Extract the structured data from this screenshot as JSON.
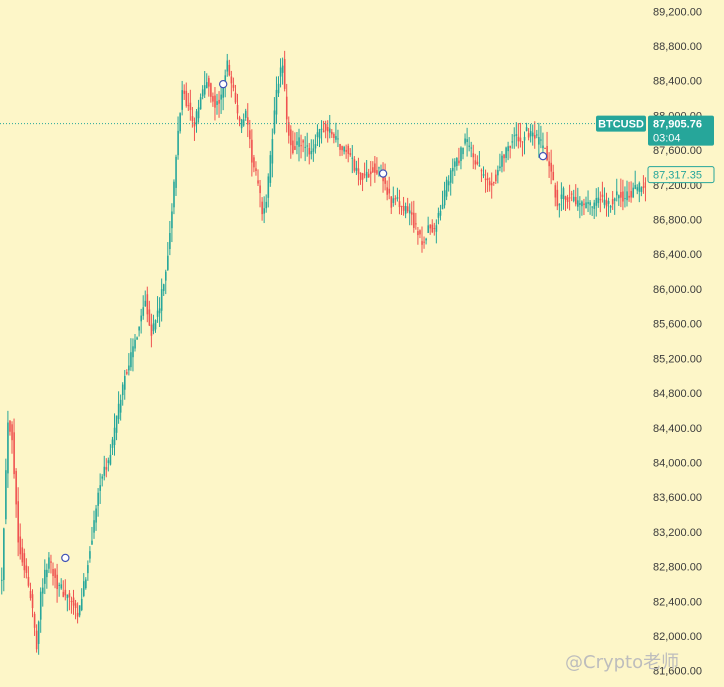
{
  "chart_data": {
    "type": "candlestick",
    "symbol": "BTCUSD",
    "current_price": "87,905.76",
    "countdown": "03:04",
    "price_line_value": 87905.76,
    "second_price_tag": "87,317.35",
    "second_price_value": 87317.35,
    "y_ticks": [
      "89,200.00",
      "88,800.00",
      "88,400.00",
      "88,000.00",
      "87,600.00",
      "87,200.00",
      "86,800.00",
      "86,400.00",
      "86,000.00",
      "85,600.00",
      "85,200.00",
      "84,800.00",
      "84,400.00",
      "84,000.00",
      "83,600.00",
      "83,200.00",
      "82,800.00",
      "82,400.00",
      "82,000.00",
      "81,600.00"
    ],
    "y_tick_values": [
      89200,
      88800,
      88400,
      88000,
      87600,
      87200,
      86800,
      86400,
      86000,
      85600,
      85200,
      84800,
      84400,
      84000,
      83600,
      83200,
      82800,
      82400,
      82000,
      81600
    ],
    "ylim": [
      81470,
      89330
    ],
    "colors": {
      "up": "#26a69a",
      "down": "#ef5350",
      "line": "#26a69a",
      "tag_bg": "#26a69a"
    },
    "anchor_prices": [
      [
        0,
        82700
      ],
      [
        3,
        84500
      ],
      [
        5,
        84300
      ],
      [
        8,
        83100
      ],
      [
        12,
        82700
      ],
      [
        15,
        82300
      ],
      [
        17,
        81900
      ],
      [
        19,
        82500
      ],
      [
        23,
        82900
      ],
      [
        27,
        82600
      ],
      [
        30,
        82500
      ],
      [
        34,
        82400
      ],
      [
        37,
        82200
      ],
      [
        41,
        82700
      ],
      [
        45,
        83300
      ],
      [
        48,
        83800
      ],
      [
        52,
        84000
      ],
      [
        56,
        84500
      ],
      [
        60,
        85000
      ],
      [
        64,
        85300
      ],
      [
        67,
        85600
      ],
      [
        70,
        85900
      ],
      [
        73,
        85500
      ],
      [
        77,
        85800
      ],
      [
        80,
        86200
      ],
      [
        83,
        86900
      ],
      [
        86,
        87800
      ],
      [
        88,
        88300
      ],
      [
        91,
        88100
      ],
      [
        94,
        87900
      ],
      [
        97,
        88200
      ],
      [
        100,
        88400
      ],
      [
        104,
        88100
      ],
      [
        107,
        88200
      ],
      [
        110,
        88600
      ],
      [
        113,
        88300
      ],
      [
        116,
        87900
      ],
      [
        119,
        88000
      ],
      [
        122,
        87500
      ],
      [
        125,
        87200
      ],
      [
        127,
        86900
      ],
      [
        129,
        87000
      ],
      [
        131,
        87500
      ],
      [
        134,
        88300
      ],
      [
        137,
        88600
      ],
      [
        139,
        87900
      ],
      [
        142,
        87600
      ],
      [
        145,
        87700
      ],
      [
        148,
        87600
      ],
      [
        151,
        87600
      ],
      [
        154,
        87750
      ],
      [
        157,
        87850
      ],
      [
        160,
        87800
      ],
      [
        163,
        87750
      ],
      [
        166,
        87600
      ],
      [
        169,
        87600
      ],
      [
        172,
        87400
      ],
      [
        175,
        87300
      ],
      [
        178,
        87300
      ],
      [
        181,
        87400
      ],
      [
        184,
        87350
      ],
      [
        187,
        87200
      ],
      [
        190,
        87000
      ],
      [
        193,
        87000
      ],
      [
        196,
        86900
      ],
      [
        199,
        86900
      ],
      [
        202,
        86700
      ],
      [
        205,
        86500
      ],
      [
        208,
        86700
      ],
      [
        211,
        86700
      ],
      [
        214,
        86900
      ],
      [
        217,
        87200
      ],
      [
        220,
        87400
      ],
      [
        223,
        87500
      ],
      [
        226,
        87700
      ],
      [
        229,
        87600
      ],
      [
        232,
        87400
      ],
      [
        235,
        87300
      ],
      [
        238,
        87200
      ],
      [
        241,
        87300
      ],
      [
        244,
        87500
      ],
      [
        247,
        87650
      ],
      [
        250,
        87750
      ],
      [
        253,
        87700
      ],
      [
        256,
        87800
      ],
      [
        259,
        87750
      ],
      [
        262,
        87700
      ],
      [
        265,
        87600
      ],
      [
        268,
        87300
      ],
      [
        271,
        87000
      ],
      [
        274,
        87100
      ],
      [
        277,
        87050
      ],
      [
        280,
        87000
      ],
      [
        283,
        86950
      ],
      [
        286,
        86950
      ],
      [
        289,
        86950
      ],
      [
        292,
        87050
      ],
      [
        295,
        86950
      ],
      [
        298,
        87000
      ],
      [
        301,
        87100
      ],
      [
        304,
        87050
      ],
      [
        307,
        87100
      ],
      [
        310,
        87150
      ],
      [
        313,
        87200
      ],
      [
        316,
        87300
      ]
    ],
    "markers": [
      {
        "index": 31,
        "price": 82900
      },
      {
        "index": 108,
        "price": 88360
      },
      {
        "index": 186,
        "price": 87330
      },
      {
        "index": 264,
        "price": 87530
      }
    ],
    "watermark": "@Crypto老师"
  }
}
